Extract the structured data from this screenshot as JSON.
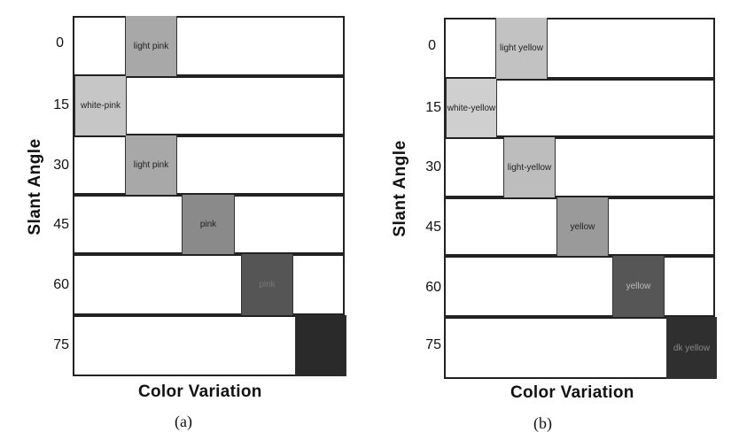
{
  "panel_a": {
    "ylabel": "Slant  Angle",
    "xlabel": "Color  Variation",
    "caption": "(a)",
    "rows": [
      {
        "angle": "0",
        "label": "light pink",
        "fill": "#a8a8a8",
        "text_color": "#222"
      },
      {
        "angle": "15",
        "label": "white-pink",
        "fill": "#c6c6c6",
        "text_color": "#222"
      },
      {
        "angle": "30",
        "label": "light pink",
        "fill": "#a8a8a8",
        "text_color": "#222"
      },
      {
        "angle": "45",
        "label": "pink",
        "fill": "#8a8a8a",
        "text_color": "#222"
      },
      {
        "angle": "60",
        "label": "pink",
        "fill": "#555555",
        "text_color": "#777"
      },
      {
        "angle": "75",
        "label": "",
        "fill": "#2a2a2a",
        "text_color": "#555"
      }
    ]
  },
  "panel_b": {
    "ylabel": "Slant  Angle",
    "xlabel": "Color  Variation",
    "caption": "(b)",
    "rows": [
      {
        "angle": "0",
        "label": "light yellow",
        "fill": "#c2c2c2",
        "text_color": "#222"
      },
      {
        "angle": "15",
        "label": "white-yellow",
        "fill": "#cfcfcf",
        "text_color": "#222"
      },
      {
        "angle": "30",
        "label": "light-yellow",
        "fill": "#bdbdbd",
        "text_color": "#222"
      },
      {
        "angle": "45",
        "label": "yellow",
        "fill": "#9a9a9a",
        "text_color": "#222"
      },
      {
        "angle": "60",
        "label": "yellow",
        "fill": "#565656",
        "text_color": "#bbb"
      },
      {
        "angle": "75",
        "label": "dk yellow",
        "fill": "#2f2f2f",
        "text_color": "#888"
      }
    ]
  }
}
